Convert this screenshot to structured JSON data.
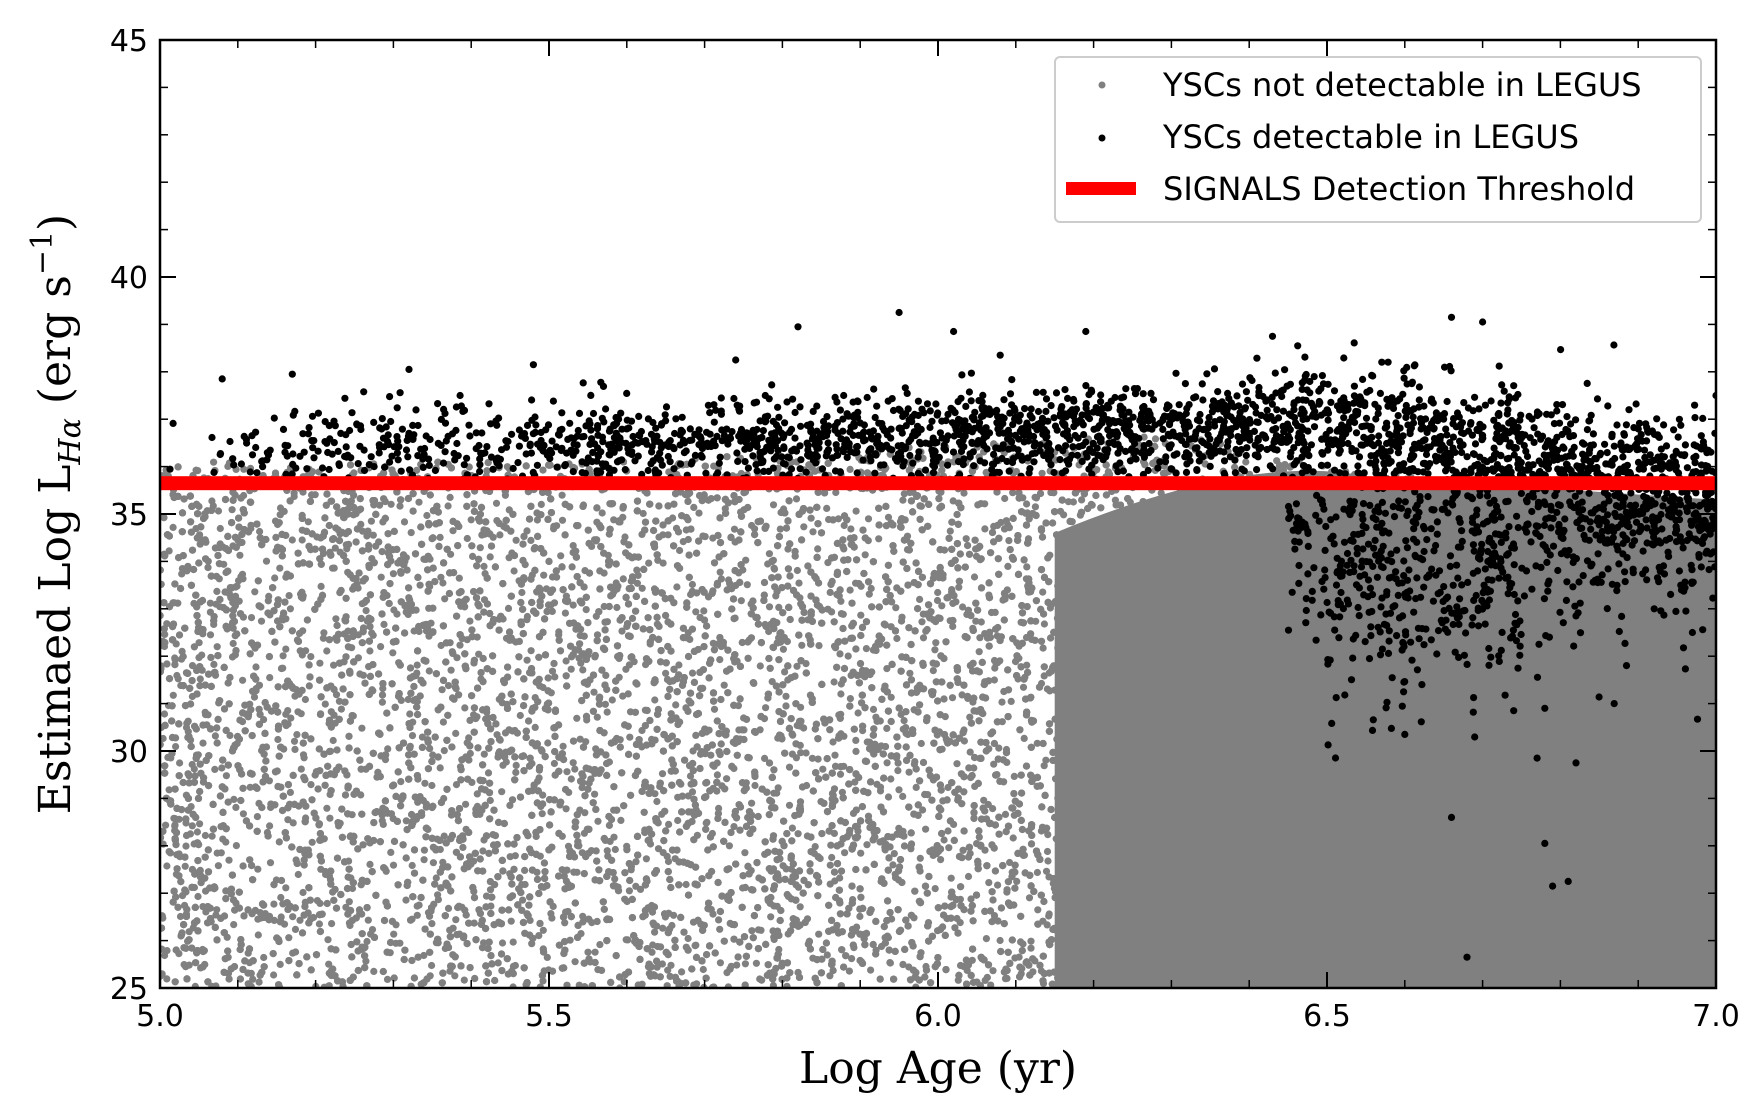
{
  "chart_data": {
    "type": "scatter",
    "xlabel": "Log Age (yr)",
    "ylabel_parts": {
      "main": "Estimaed Log L",
      "sub": "Hα",
      "unit_open": " (erg s",
      "sup": "−1",
      "unit_close": ")"
    },
    "xlim": [
      5.0,
      7.0
    ],
    "ylim": [
      25,
      45
    ],
    "x_ticks": [
      "5.0",
      "5.5",
      "6.0",
      "6.5",
      "7.0"
    ],
    "y_ticks": [
      "25",
      "30",
      "35",
      "40",
      "45"
    ],
    "grid": false,
    "legend_placement": "top-right",
    "threshold": {
      "name": "SIGNALS Detection Threshold",
      "y": 35.65,
      "color": "#ff0000"
    },
    "series": [
      {
        "name": "YSCs not detectable in LEGUS",
        "color": "#808080",
        "role": "background"
      },
      {
        "name": "YSCs detectable in LEGUS",
        "color": "#000000",
        "role": "foreground"
      }
    ],
    "highlighted_points": [
      {
        "x": 5.95,
        "y": 39.25
      },
      {
        "x": 6.02,
        "y": 38.85
      },
      {
        "x": 5.82,
        "y": 38.95
      },
      {
        "x": 6.19,
        "y": 38.85
      },
      {
        "x": 6.66,
        "y": 39.15
      },
      {
        "x": 6.7,
        "y": 39.05
      },
      {
        "x": 6.43,
        "y": 38.75
      },
      {
        "x": 6.66,
        "y": 28.6
      },
      {
        "x": 6.68,
        "y": 25.65
      },
      {
        "x": 6.78,
        "y": 28.05
      },
      {
        "x": 6.79,
        "y": 27.15
      },
      {
        "x": 6.81,
        "y": 27.25
      },
      {
        "x": 6.82,
        "y": 29.75
      },
      {
        "x": 6.77,
        "y": 29.85
      },
      {
        "x": 6.6,
        "y": 30.35
      },
      {
        "x": 6.74,
        "y": 30.85
      },
      {
        "x": 6.78,
        "y": 30.9
      },
      {
        "x": 5.08,
        "y": 37.85
      },
      {
        "x": 5.17,
        "y": 37.95
      },
      {
        "x": 5.32,
        "y": 38.05
      },
      {
        "x": 5.48,
        "y": 38.15
      },
      {
        "x": 5.74,
        "y": 38.25
      },
      {
        "x": 6.08,
        "y": 38.35
      },
      {
        "x": 7.0,
        "y": 37.5
      }
    ]
  }
}
